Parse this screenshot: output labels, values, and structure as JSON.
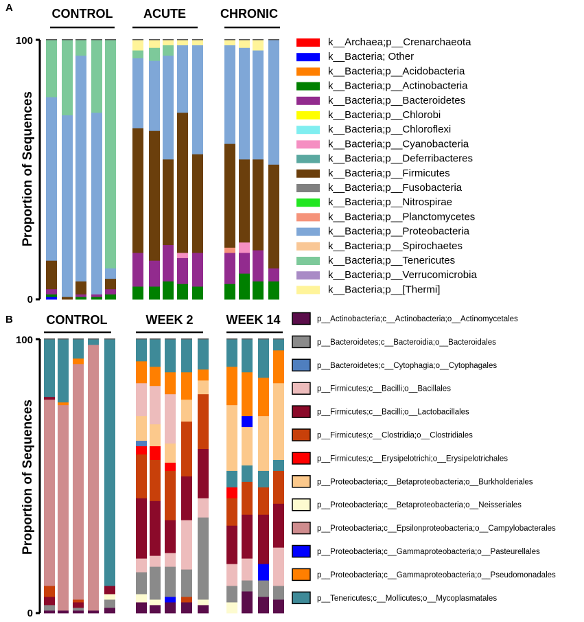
{
  "chart_data": [
    {
      "panel": "A",
      "type": "stacked-bar",
      "ylabel": "Proportion of Sequences",
      "ylim": [
        0,
        100
      ],
      "yticks": [
        "0",
        "100"
      ],
      "groups": [
        "CONTROL",
        "ACUTE",
        "CHRONIC"
      ],
      "group_sizes": [
        5,
        5,
        4
      ],
      "legend": [
        {
          "label": "k__Archaea;p__Crenarchaeota",
          "color": "#ff0000"
        },
        {
          "label": "k__Bacteria; Other",
          "color": "#0000ff"
        },
        {
          "label": "k__Bacteria;p__Acidobacteria",
          "color": "#ff7f00"
        },
        {
          "label": "k__Bacteria;p__Actinobacteria",
          "color": "#008000"
        },
        {
          "label": "k__Bacteria;p__Bacteroidetes",
          "color": "#922b8e"
        },
        {
          "label": "k__Bacteria;p__Chlorobi",
          "color": "#ffff00"
        },
        {
          "label": "k__Bacteria;p__Chloroflexi",
          "color": "#80eef0"
        },
        {
          "label": "k__Bacteria;p__Cyanobacteria",
          "color": "#f58fc2"
        },
        {
          "label": "k__Bacteria;p__Deferribacteres",
          "color": "#5aa8a0"
        },
        {
          "label": "k__Bacteria;p__Firmicutes",
          "color": "#6b3f0c"
        },
        {
          "label": "k__Bacteria;p__Fusobacteria",
          "color": "#808080"
        },
        {
          "label": "k__Bacteria;p__Nitrospirae",
          "color": "#22e622"
        },
        {
          "label": "k__Bacteria;p__Planctomycetes",
          "color": "#f5937a"
        },
        {
          "label": "k__Bacteria;p__Proteobacteria",
          "color": "#7fa7d7"
        },
        {
          "label": "k__Bacteria;p__Spirochaetes",
          "color": "#f9c796"
        },
        {
          "label": "k__Bacteria;p__Tenericutes",
          "color": "#7dc99a"
        },
        {
          "label": "k__Bacteria;p__Verrucomicrobia",
          "color": "#a98bc6"
        },
        {
          "label": "k__Bacteria;p__[Thermi]",
          "color": "#fff49a"
        }
      ],
      "samples": [
        {
          "group": "CONTROL",
          "segments": [
            [
              1,
              1
            ],
            [
              3,
              1
            ],
            [
              4,
              2
            ],
            [
              9,
              11
            ],
            [
              13,
              63
            ],
            [
              15,
              22
            ]
          ]
        },
        {
          "group": "CONTROL",
          "segments": [
            [
              9,
              1
            ],
            [
              13,
              70
            ],
            [
              15,
              29
            ]
          ]
        },
        {
          "group": "CONTROL",
          "segments": [
            [
              3,
              1
            ],
            [
              4,
              1
            ],
            [
              9,
              5
            ],
            [
              13,
              87
            ],
            [
              15,
              6
            ]
          ]
        },
        {
          "group": "CONTROL",
          "segments": [
            [
              3,
              1
            ],
            [
              4,
              1
            ],
            [
              13,
              70
            ],
            [
              15,
              28
            ]
          ]
        },
        {
          "group": "CONTROL",
          "segments": [
            [
              3,
              2
            ],
            [
              4,
              2
            ],
            [
              9,
              4
            ],
            [
              13,
              4
            ],
            [
              15,
              88
            ]
          ]
        },
        {
          "group": "ACUTE",
          "segments": [
            [
              3,
              5
            ],
            [
              4,
              13
            ],
            [
              9,
              48
            ],
            [
              13,
              27
            ],
            [
              15,
              3
            ],
            [
              17,
              4
            ]
          ]
        },
        {
          "group": "ACUTE",
          "segments": [
            [
              3,
              5
            ],
            [
              4,
              10
            ],
            [
              9,
              50
            ],
            [
              13,
              27
            ],
            [
              15,
              5
            ],
            [
              17,
              3
            ]
          ]
        },
        {
          "group": "ACUTE",
          "segments": [
            [
              3,
              7
            ],
            [
              4,
              14
            ],
            [
              9,
              33
            ],
            [
              13,
              40
            ],
            [
              15,
              4
            ],
            [
              17,
              2
            ]
          ]
        },
        {
          "group": "ACUTE",
          "segments": [
            [
              3,
              6
            ],
            [
              4,
              10
            ],
            [
              7,
              2
            ],
            [
              9,
              54
            ],
            [
              13,
              26
            ],
            [
              17,
              2
            ]
          ]
        },
        {
          "group": "ACUTE",
          "segments": [
            [
              3,
              5
            ],
            [
              4,
              13
            ],
            [
              9,
              38
            ],
            [
              13,
              42
            ],
            [
              17,
              2
            ]
          ]
        },
        {
          "group": "CHRONIC",
          "segments": [
            [
              3,
              6
            ],
            [
              4,
              12
            ],
            [
              12,
              2
            ],
            [
              9,
              40
            ],
            [
              13,
              38
            ],
            [
              17,
              2
            ]
          ]
        },
        {
          "group": "CHRONIC",
          "segments": [
            [
              3,
              10
            ],
            [
              4,
              8
            ],
            [
              7,
              4
            ],
            [
              9,
              32
            ],
            [
              13,
              43
            ],
            [
              17,
              3
            ]
          ]
        },
        {
          "group": "CHRONIC",
          "segments": [
            [
              3,
              7
            ],
            [
              4,
              12
            ],
            [
              9,
              35
            ],
            [
              13,
              42
            ],
            [
              17,
              4
            ]
          ]
        },
        {
          "group": "CHRONIC",
          "segments": [
            [
              3,
              7
            ],
            [
              4,
              5
            ],
            [
              9,
              40
            ],
            [
              13,
              48
            ]
          ]
        }
      ]
    },
    {
      "panel": "B",
      "type": "stacked-bar",
      "ylabel": "Proportion of Sequences",
      "ylim": [
        0,
        100
      ],
      "yticks": [
        "0",
        "100"
      ],
      "groups": [
        "CONTROL",
        "WEEK 2",
        "WEEK 14"
      ],
      "group_sizes": [
        5,
        5,
        4
      ],
      "legend": [
        {
          "label": "p__Actinobacteria;c__Actinobacteria;o__Actinomycetales",
          "color": "#5a0d4a"
        },
        {
          "label": "p__Bacteroidetes;c__Bacteroidia;o__Bacteroidales",
          "color": "#8a8a8a"
        },
        {
          "label": "p__Bacteroidetes;c__Cytophagia;o__Cytophagales",
          "color": "#4f7fbf"
        },
        {
          "label": "p__Firmicutes;c__Bacilli;o__Bacillales",
          "color": "#edbcbc"
        },
        {
          "label": "p__Firmicutes;c__Bacilli;o__Lactobacillales",
          "color": "#8b0a2a"
        },
        {
          "label": "p__Firmicutes;c__Clostridia;o__Clostridiales",
          "color": "#c8400a"
        },
        {
          "label": "p__Firmicutes;c__Erysipelotrichi;o__Erysipelotrichales",
          "color": "#ff0000"
        },
        {
          "label": "p__Proteobacteria;c__Betaproteobacteria;o__Burkholderiales",
          "color": "#fcc98c"
        },
        {
          "label": "p__Proteobacteria;c__Betaproteobacteria;o__Neisseriales",
          "color": "#fdfbd0"
        },
        {
          "label": "p__Proteobacteria;c__Epsilonproteobacteria;o__Campylobacterales",
          "color": "#cf8c8e"
        },
        {
          "label": "p__Proteobacteria;c__Gammaproteobacteria;o__Pasteurellales",
          "color": "#0000ff"
        },
        {
          "label": "p__Proteobacteria;c__Gammaproteobacteria;o__Pseudomonadales",
          "color": "#ff7f00"
        },
        {
          "label": "p__Tenericutes;c__Mollicutes;o__Mycoplasmatales",
          "color": "#3e8a98"
        }
      ],
      "samples": [
        {
          "group": "CONTROL",
          "segments": [
            [
              0,
              1
            ],
            [
              1,
              2
            ],
            [
              4,
              3
            ],
            [
              5,
              4
            ],
            [
              9,
              68
            ],
            [
              4,
              1
            ],
            [
              12,
              21
            ]
          ]
        },
        {
          "group": "CONTROL",
          "segments": [
            [
              0,
              1
            ],
            [
              9,
              75
            ],
            [
              11,
              1
            ],
            [
              12,
              23
            ]
          ]
        },
        {
          "group": "CONTROL",
          "segments": [
            [
              0,
              1
            ],
            [
              1,
              1
            ],
            [
              4,
              2
            ],
            [
              5,
              1
            ],
            [
              9,
              86
            ],
            [
              11,
              2
            ],
            [
              12,
              7
            ]
          ]
        },
        {
          "group": "CONTROL",
          "segments": [
            [
              0,
              1
            ],
            [
              9,
              97
            ],
            [
              12,
              2
            ]
          ]
        },
        {
          "group": "CONTROL",
          "segments": [
            [
              0,
              2
            ],
            [
              1,
              3
            ],
            [
              8,
              2
            ],
            [
              4,
              3
            ],
            [
              12,
              90
            ]
          ]
        },
        {
          "group": "WEEK 2",
          "segments": [
            [
              0,
              4
            ],
            [
              8,
              3
            ],
            [
              1,
              8
            ],
            [
              3,
              5
            ],
            [
              4,
              22
            ],
            [
              5,
              16
            ],
            [
              6,
              3
            ],
            [
              2,
              2
            ],
            [
              7,
              9
            ],
            [
              3,
              12
            ],
            [
              11,
              8
            ],
            [
              12,
              8
            ]
          ]
        },
        {
          "group": "WEEK 2",
          "segments": [
            [
              0,
              3
            ],
            [
              8,
              2
            ],
            [
              1,
              12
            ],
            [
              3,
              4
            ],
            [
              4,
              20
            ],
            [
              5,
              15
            ],
            [
              6,
              5
            ],
            [
              7,
              8
            ],
            [
              3,
              14
            ],
            [
              11,
              7
            ],
            [
              12,
              10
            ]
          ]
        },
        {
          "group": "WEEK 2",
          "segments": [
            [
              0,
              4
            ],
            [
              10,
              2
            ],
            [
              1,
              11
            ],
            [
              3,
              5
            ],
            [
              4,
              12
            ],
            [
              5,
              18
            ],
            [
              6,
              3
            ],
            [
              7,
              7
            ],
            [
              3,
              18
            ],
            [
              11,
              8
            ],
            [
              12,
              12
            ]
          ]
        },
        {
          "group": "WEEK 2",
          "segments": [
            [
              0,
              4
            ],
            [
              5,
              2
            ],
            [
              1,
              10
            ],
            [
              3,
              18
            ],
            [
              4,
              16
            ],
            [
              5,
              20
            ],
            [
              7,
              8
            ],
            [
              11,
              10
            ],
            [
              12,
              12
            ]
          ]
        },
        {
          "group": "WEEK 2",
          "segments": [
            [
              0,
              3
            ],
            [
              8,
              2
            ],
            [
              1,
              30
            ],
            [
              3,
              7
            ],
            [
              4,
              18
            ],
            [
              5,
              20
            ],
            [
              7,
              5
            ],
            [
              11,
              4
            ],
            [
              12,
              11
            ]
          ]
        },
        {
          "group": "WEEK 14",
          "segments": [
            [
              8,
              4
            ],
            [
              1,
              6
            ],
            [
              3,
              8
            ],
            [
              4,
              14
            ],
            [
              5,
              10
            ],
            [
              6,
              4
            ],
            [
              12,
              6
            ],
            [
              7,
              24
            ],
            [
              11,
              14
            ],
            [
              12,
              10
            ]
          ]
        },
        {
          "group": "WEEK 14",
          "segments": [
            [
              0,
              8
            ],
            [
              1,
              4
            ],
            [
              3,
              8
            ],
            [
              4,
              16
            ],
            [
              5,
              12
            ],
            [
              12,
              6
            ],
            [
              7,
              14
            ],
            [
              10,
              4
            ],
            [
              11,
              16
            ],
            [
              12,
              12
            ]
          ]
        },
        {
          "group": "WEEK 14",
          "segments": [
            [
              0,
              6
            ],
            [
              1,
              6
            ],
            [
              10,
              6
            ],
            [
              4,
              18
            ],
            [
              5,
              10
            ],
            [
              12,
              6
            ],
            [
              7,
              20
            ],
            [
              11,
              14
            ],
            [
              12,
              14
            ]
          ]
        },
        {
          "group": "WEEK 14",
          "segments": [
            [
              0,
              5
            ],
            [
              1,
              5
            ],
            [
              3,
              14
            ],
            [
              4,
              16
            ],
            [
              5,
              12
            ],
            [
              12,
              4
            ],
            [
              7,
              28
            ],
            [
              11,
              12
            ],
            [
              12,
              4
            ]
          ]
        }
      ]
    }
  ]
}
